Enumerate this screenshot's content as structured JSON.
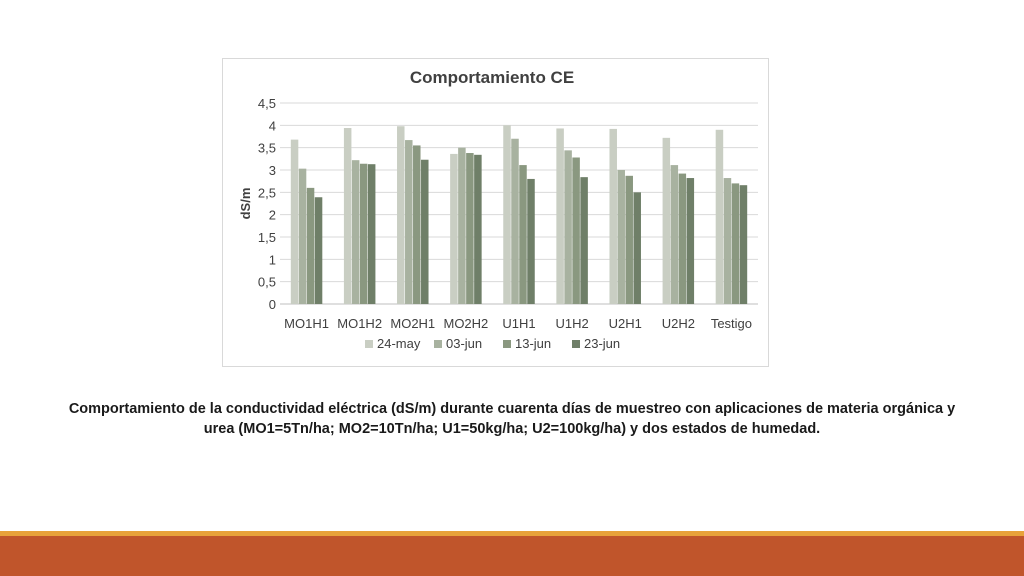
{
  "caption": "Comportamiento de la conductividad eléctrica (dS/m) durante cuarenta días de muestreo con aplicaciones de materia orgánica y urea (MO1=5Tn/ha; MO2=10Tn/ha; U1=50kg/ha; U2=100kg/ha) y dos estados de humedad.",
  "colors": {
    "footer_stripe": "#e8a23a",
    "footer_bar": "#c0552b",
    "gridline": "#d9d9d9",
    "frame": "#d9d9d9"
  },
  "chart_data": {
    "type": "bar",
    "title": "Comportamiento CE",
    "xlabel": "",
    "ylabel": "dS/m",
    "ylim": [
      0,
      4.5
    ],
    "yticks": [
      "0",
      "0,5",
      "1",
      "1,5",
      "2",
      "2,5",
      "3",
      "3,5",
      "4",
      "4,5"
    ],
    "grid": true,
    "legend_position": "bottom",
    "categories": [
      "MO1H1",
      "MO1H2",
      "MO2H1",
      "MO2H2",
      "U1H1",
      "U1H2",
      "U2H1",
      "U2H2",
      "Testigo"
    ],
    "series": [
      {
        "name": "24-may",
        "color": "#c9cec3",
        "values": [
          3.68,
          3.94,
          3.98,
          3.36,
          4.0,
          3.93,
          3.92,
          3.72,
          3.9
        ]
      },
      {
        "name": "03-jun",
        "color": "#a8b2a0",
        "values": [
          3.03,
          3.22,
          3.67,
          3.5,
          3.7,
          3.44,
          3.0,
          3.11,
          2.82
        ]
      },
      {
        "name": "13-jun",
        "color": "#8a9880",
        "values": [
          2.6,
          3.14,
          3.55,
          3.38,
          3.11,
          3.28,
          2.87,
          2.92,
          2.7
        ]
      },
      {
        "name": "23-jun",
        "color": "#6f7f68",
        "values": [
          2.39,
          3.13,
          3.23,
          3.34,
          2.8,
          2.84,
          2.5,
          2.82,
          2.66
        ]
      }
    ]
  }
}
